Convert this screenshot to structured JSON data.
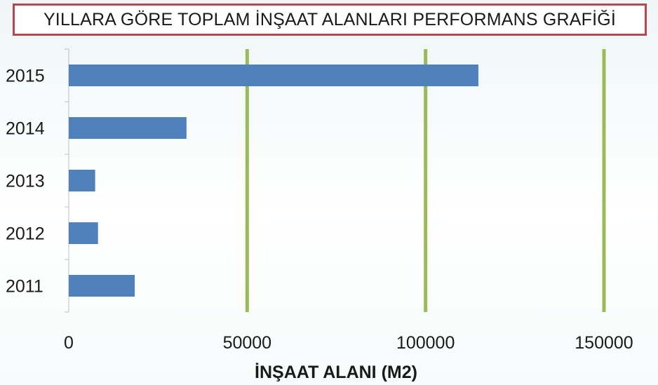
{
  "chart_data": {
    "type": "bar",
    "orientation": "horizontal",
    "title": "YILLARA GÖRE TOPLAM İNŞAAT ALANLARI PERFORMANS GRAFİĞİ",
    "xlabel": "İNŞAAT ALANI (M2)",
    "ylabel": "",
    "categories": [
      "2011",
      "2012",
      "2013",
      "2014",
      "2015"
    ],
    "values": [
      18500,
      8200,
      7400,
      33000,
      114800
    ],
    "xlim": [
      0,
      150000
    ],
    "xticks": [
      "0",
      "50000",
      "100000",
      "150000"
    ],
    "grid": "vertical",
    "legend": "none",
    "bar_color": "#4f81bd",
    "grid_color": "#9bbb59",
    "title_border_color": "#b5484f"
  }
}
